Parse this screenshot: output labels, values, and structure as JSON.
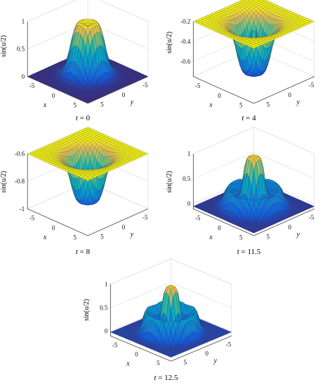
{
  "chart_data": [
    {
      "type": "surface3d",
      "caption_var": "t",
      "caption_eq": " = ",
      "caption_val": "0",
      "xlabel": "x",
      "ylabel": "y",
      "zlabel": "sin(u/2)",
      "xlim": [
        -7,
        7
      ],
      "ylim": [
        -7,
        7
      ],
      "zlim": [
        0,
        1
      ],
      "xticks": [
        "-5",
        "0",
        "5"
      ],
      "yticks": [
        "-5",
        "0",
        "5"
      ],
      "zticks": [
        "0",
        "0.5",
        "1"
      ],
      "ztick_values": [
        0,
        0.5,
        1
      ],
      "profile": {
        "center": 0.93,
        "ring_peak": 1.0,
        "ring_radius": 1.3,
        "edge": 0.0,
        "shape": "bump"
      }
    },
    {
      "type": "surface3d",
      "caption_var": "t",
      "caption_eq": " = ",
      "caption_val": "4",
      "xlabel": "x",
      "ylabel": "y",
      "zlabel": "sin(u/2)",
      "xlim": [
        -7,
        7
      ],
      "ylim": [
        -7,
        7
      ],
      "zlim": [
        -0.75,
        -0.2
      ],
      "xticks": [
        "-5",
        "0",
        "5"
      ],
      "yticks": [
        "-5",
        "0",
        "5"
      ],
      "zticks": [
        "-0.2",
        "-0.4",
        "-0.6"
      ],
      "ztick_values": [
        -0.2,
        -0.4,
        -0.6
      ],
      "profile": {
        "center": -0.3,
        "bottom": -0.72,
        "edge": -0.2,
        "shape": "well"
      }
    },
    {
      "type": "surface3d",
      "caption_var": "t",
      "caption_eq": " = ",
      "caption_val": "8",
      "xlabel": "x",
      "ylabel": "y",
      "zlabel": "sin(u/2)",
      "xlim": [
        -7,
        7
      ],
      "ylim": [
        -7,
        7
      ],
      "zlim": [
        -1,
        -0.6
      ],
      "xticks": [
        "-5",
        "0",
        "5"
      ],
      "yticks": [
        "-5",
        "0",
        "5"
      ],
      "zticks": [
        "-0.6",
        "-0.8",
        "-1"
      ],
      "ztick_values": [
        -0.6,
        -0.8,
        -1
      ],
      "profile": {
        "center": -0.95,
        "edge": -0.6,
        "shape": "well"
      }
    },
    {
      "type": "surface3d",
      "caption_var": "t",
      "caption_eq": " = ",
      "caption_val": "11.5",
      "xlabel": "x",
      "ylabel": "y",
      "zlabel": "sin(u/2)",
      "xlim": [
        -7,
        7
      ],
      "ylim": [
        -7,
        7
      ],
      "zlim": [
        -0.1,
        1
      ],
      "xticks": [
        "-5",
        "0",
        "5"
      ],
      "yticks": [
        "-5",
        "0",
        "5"
      ],
      "zticks": [
        "0",
        "0.5",
        "1"
      ],
      "ztick_values": [
        0,
        0.5,
        1
      ],
      "profile": {
        "center": 0.95,
        "ring": 0.35,
        "edge": -0.05,
        "shape": "wavy"
      }
    },
    {
      "type": "surface3d",
      "caption_var": "t",
      "caption_eq": " = ",
      "caption_val": "12.5",
      "xlabel": "x",
      "ylabel": "y",
      "zlabel": "sin(u/2)",
      "xlim": [
        -7,
        7
      ],
      "ylim": [
        -7,
        7
      ],
      "zlim": [
        -0.1,
        1
      ],
      "xticks": [
        "-5",
        "0",
        "5"
      ],
      "yticks": [
        "-5",
        "0",
        "5"
      ],
      "zticks": [
        "0",
        "0.5",
        "1"
      ],
      "ztick_values": [
        0,
        0.5,
        1
      ],
      "profile": {
        "center": 0.95,
        "ring": 0.45,
        "edge": -0.02,
        "shape": "wavy2"
      }
    }
  ]
}
